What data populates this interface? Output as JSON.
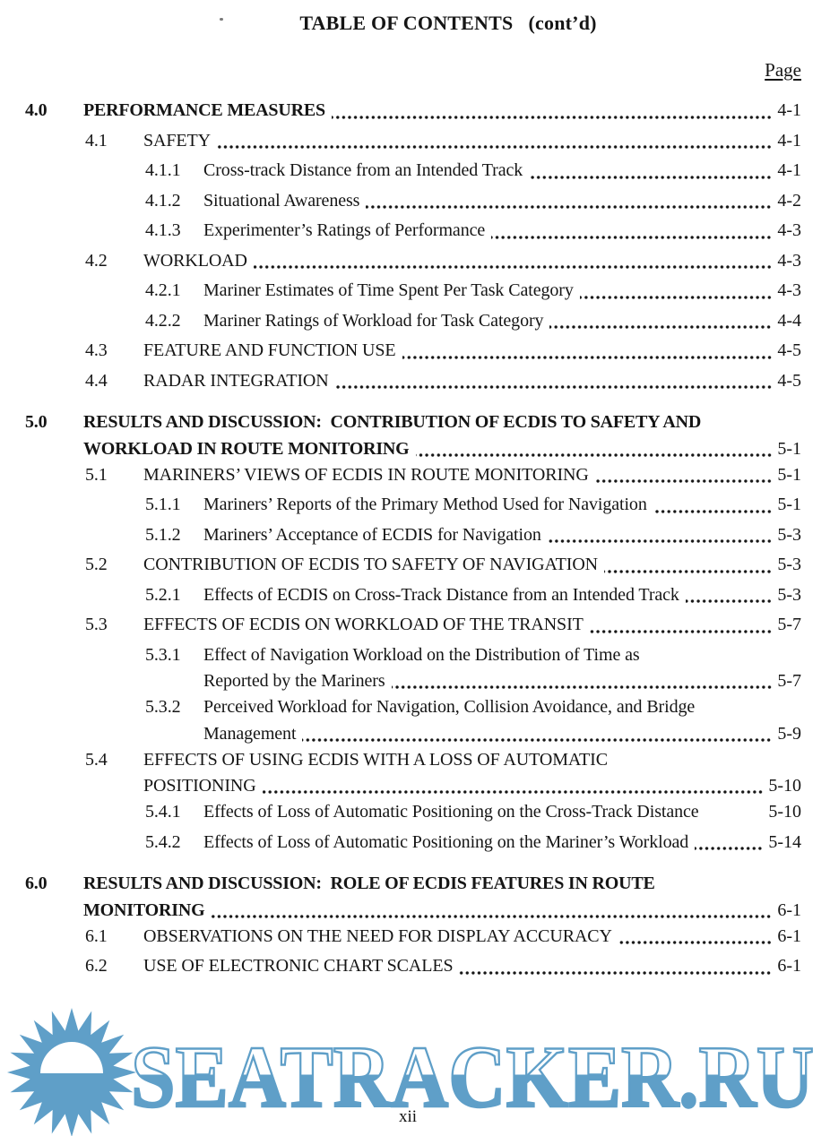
{
  "page": {
    "header_title": "TABLE OF CONTENTS   (cont’d)",
    "page_column_label": "Page",
    "footer_page_number": "xii"
  },
  "watermark": {
    "text": "SEATRACKER.RU",
    "color": "#5f9fc8",
    "sun_icon": "sun-over-water"
  },
  "toc": {
    "entries": [
      {
        "num": "4.0",
        "level": 1,
        "bold": true,
        "lines": [
          {
            "text": "PERFORMANCE MEASURES",
            "dots": true,
            "page": "4-1"
          }
        ]
      },
      {
        "num": "4.1",
        "level": 2,
        "lines": [
          {
            "text": "SAFETY",
            "dots": true,
            "page": "4-1"
          }
        ]
      },
      {
        "num": "4.1.1",
        "level": 3,
        "lines": [
          {
            "text": "Cross-track Distance from an Intended Track",
            "dots": true,
            "page": "4-1"
          }
        ]
      },
      {
        "num": "4.1.2",
        "level": 3,
        "lines": [
          {
            "text": "Situational Awareness",
            "dots": true,
            "page": "4-2"
          }
        ]
      },
      {
        "num": "4.1.3",
        "level": 3,
        "lines": [
          {
            "text": "Experimenter’s Ratings of Performance",
            "dots": true,
            "page": "4-3"
          }
        ]
      },
      {
        "num": "4.2",
        "level": 2,
        "lines": [
          {
            "text": "WORKLOAD",
            "dots": true,
            "page": "4-3"
          }
        ]
      },
      {
        "num": "4.2.1",
        "level": 3,
        "lines": [
          {
            "text": "Mariner Estimates of Time Spent Per Task Category",
            "dots": true,
            "page": "4-3"
          }
        ]
      },
      {
        "num": "4.2.2",
        "level": 3,
        "lines": [
          {
            "text": "Mariner Ratings of Workload for Task Category",
            "dots": true,
            "page": "4-4"
          }
        ]
      },
      {
        "num": "4.3",
        "level": 2,
        "lines": [
          {
            "text": "FEATURE AND FUNCTION USE",
            "dots": true,
            "page": "4-5"
          }
        ]
      },
      {
        "num": "4.4",
        "level": 2,
        "lines": [
          {
            "text": "RADAR INTEGRATION",
            "dots": true,
            "page": "4-5"
          }
        ]
      },
      {
        "num": "5.0",
        "level": 1,
        "bold": true,
        "gap": true,
        "lines": [
          {
            "text": "RESULTS AND DISCUSSION:  CONTRIBUTION OF ECDIS TO SAFETY AND"
          },
          {
            "text": "WORKLOAD IN ROUTE MONITORING",
            "dots": true,
            "page": "5-1"
          }
        ]
      },
      {
        "num": "5.1",
        "level": 2,
        "lines": [
          {
            "text": "MARINERS’ VIEWS OF ECDIS IN ROUTE MONITORING",
            "dots": true,
            "page": "5-1"
          }
        ]
      },
      {
        "num": "5.1.1",
        "level": 3,
        "lines": [
          {
            "text": "Mariners’ Reports of the Primary Method Used for Navigation",
            "dots": true,
            "page": "5-1"
          }
        ]
      },
      {
        "num": "5.1.2",
        "level": 3,
        "lines": [
          {
            "text": "Mariners’ Acceptance of ECDIS for Navigation",
            "dots": true,
            "page": "5-3"
          }
        ]
      },
      {
        "num": "5.2",
        "level": 2,
        "lines": [
          {
            "text": "CONTRIBUTION OF ECDIS TO SAFETY OF NAVIGATION",
            "dots": true,
            "page": "5-3"
          }
        ]
      },
      {
        "num": "5.2.1",
        "level": 3,
        "lines": [
          {
            "text": "Effects of ECDIS on Cross-Track Distance from an Intended Track",
            "dots": true,
            "page": "5-3"
          }
        ]
      },
      {
        "num": "5.3",
        "level": 2,
        "lines": [
          {
            "text": "EFFECTS OF ECDIS ON WORKLOAD OF THE TRANSIT",
            "dots": true,
            "page": "5-7"
          }
        ]
      },
      {
        "num": "5.3.1",
        "level": 3,
        "lines": [
          {
            "text": "Effect of Navigation Workload on the Distribution of Time as"
          },
          {
            "text": "Reported by the Mariners",
            "dots": true,
            "page": "5-7"
          }
        ]
      },
      {
        "num": "5.3.2",
        "level": 3,
        "lines": [
          {
            "text": "Perceived Workload for Navigation, Collision Avoidance, and Bridge"
          },
          {
            "text": "Management",
            "dots": true,
            "page": "5-9"
          }
        ]
      },
      {
        "num": "5.4",
        "level": 2,
        "lines": [
          {
            "text": "EFFECTS OF USING ECDIS WITH A LOSS OF AUTOMATIC"
          },
          {
            "text": "POSITIONING",
            "dots": true,
            "page": "5-10"
          }
        ]
      },
      {
        "num": "5.4.1",
        "level": 3,
        "lines": [
          {
            "text": "Effects of Loss of Automatic Positioning on the Cross-Track Distance",
            "dots": false,
            "page": "5-10"
          }
        ]
      },
      {
        "num": "5.4.2",
        "level": 3,
        "lines": [
          {
            "text": "Effects of Loss of Automatic Positioning on the Mariner’s Workload",
            "dots": true,
            "page": "5-14"
          }
        ]
      },
      {
        "num": "6.0",
        "level": 1,
        "bold": true,
        "gap": true,
        "lines": [
          {
            "text": "RESULTS AND DISCUSSION:  ROLE OF ECDIS FEATURES IN ROUTE"
          },
          {
            "text": "MONITORING",
            "dots": true,
            "page": "6-1"
          }
        ]
      },
      {
        "num": "6.1",
        "level": 2,
        "lines": [
          {
            "text": "OBSERVATIONS ON THE NEED FOR DISPLAY ACCURACY",
            "dots": true,
            "page": "6-1"
          }
        ]
      },
      {
        "num": "6.2",
        "level": 2,
        "lines": [
          {
            "text": "USE OF ELECTRONIC CHART SCALES",
            "dots": true,
            "page": "6-1"
          }
        ]
      }
    ]
  }
}
